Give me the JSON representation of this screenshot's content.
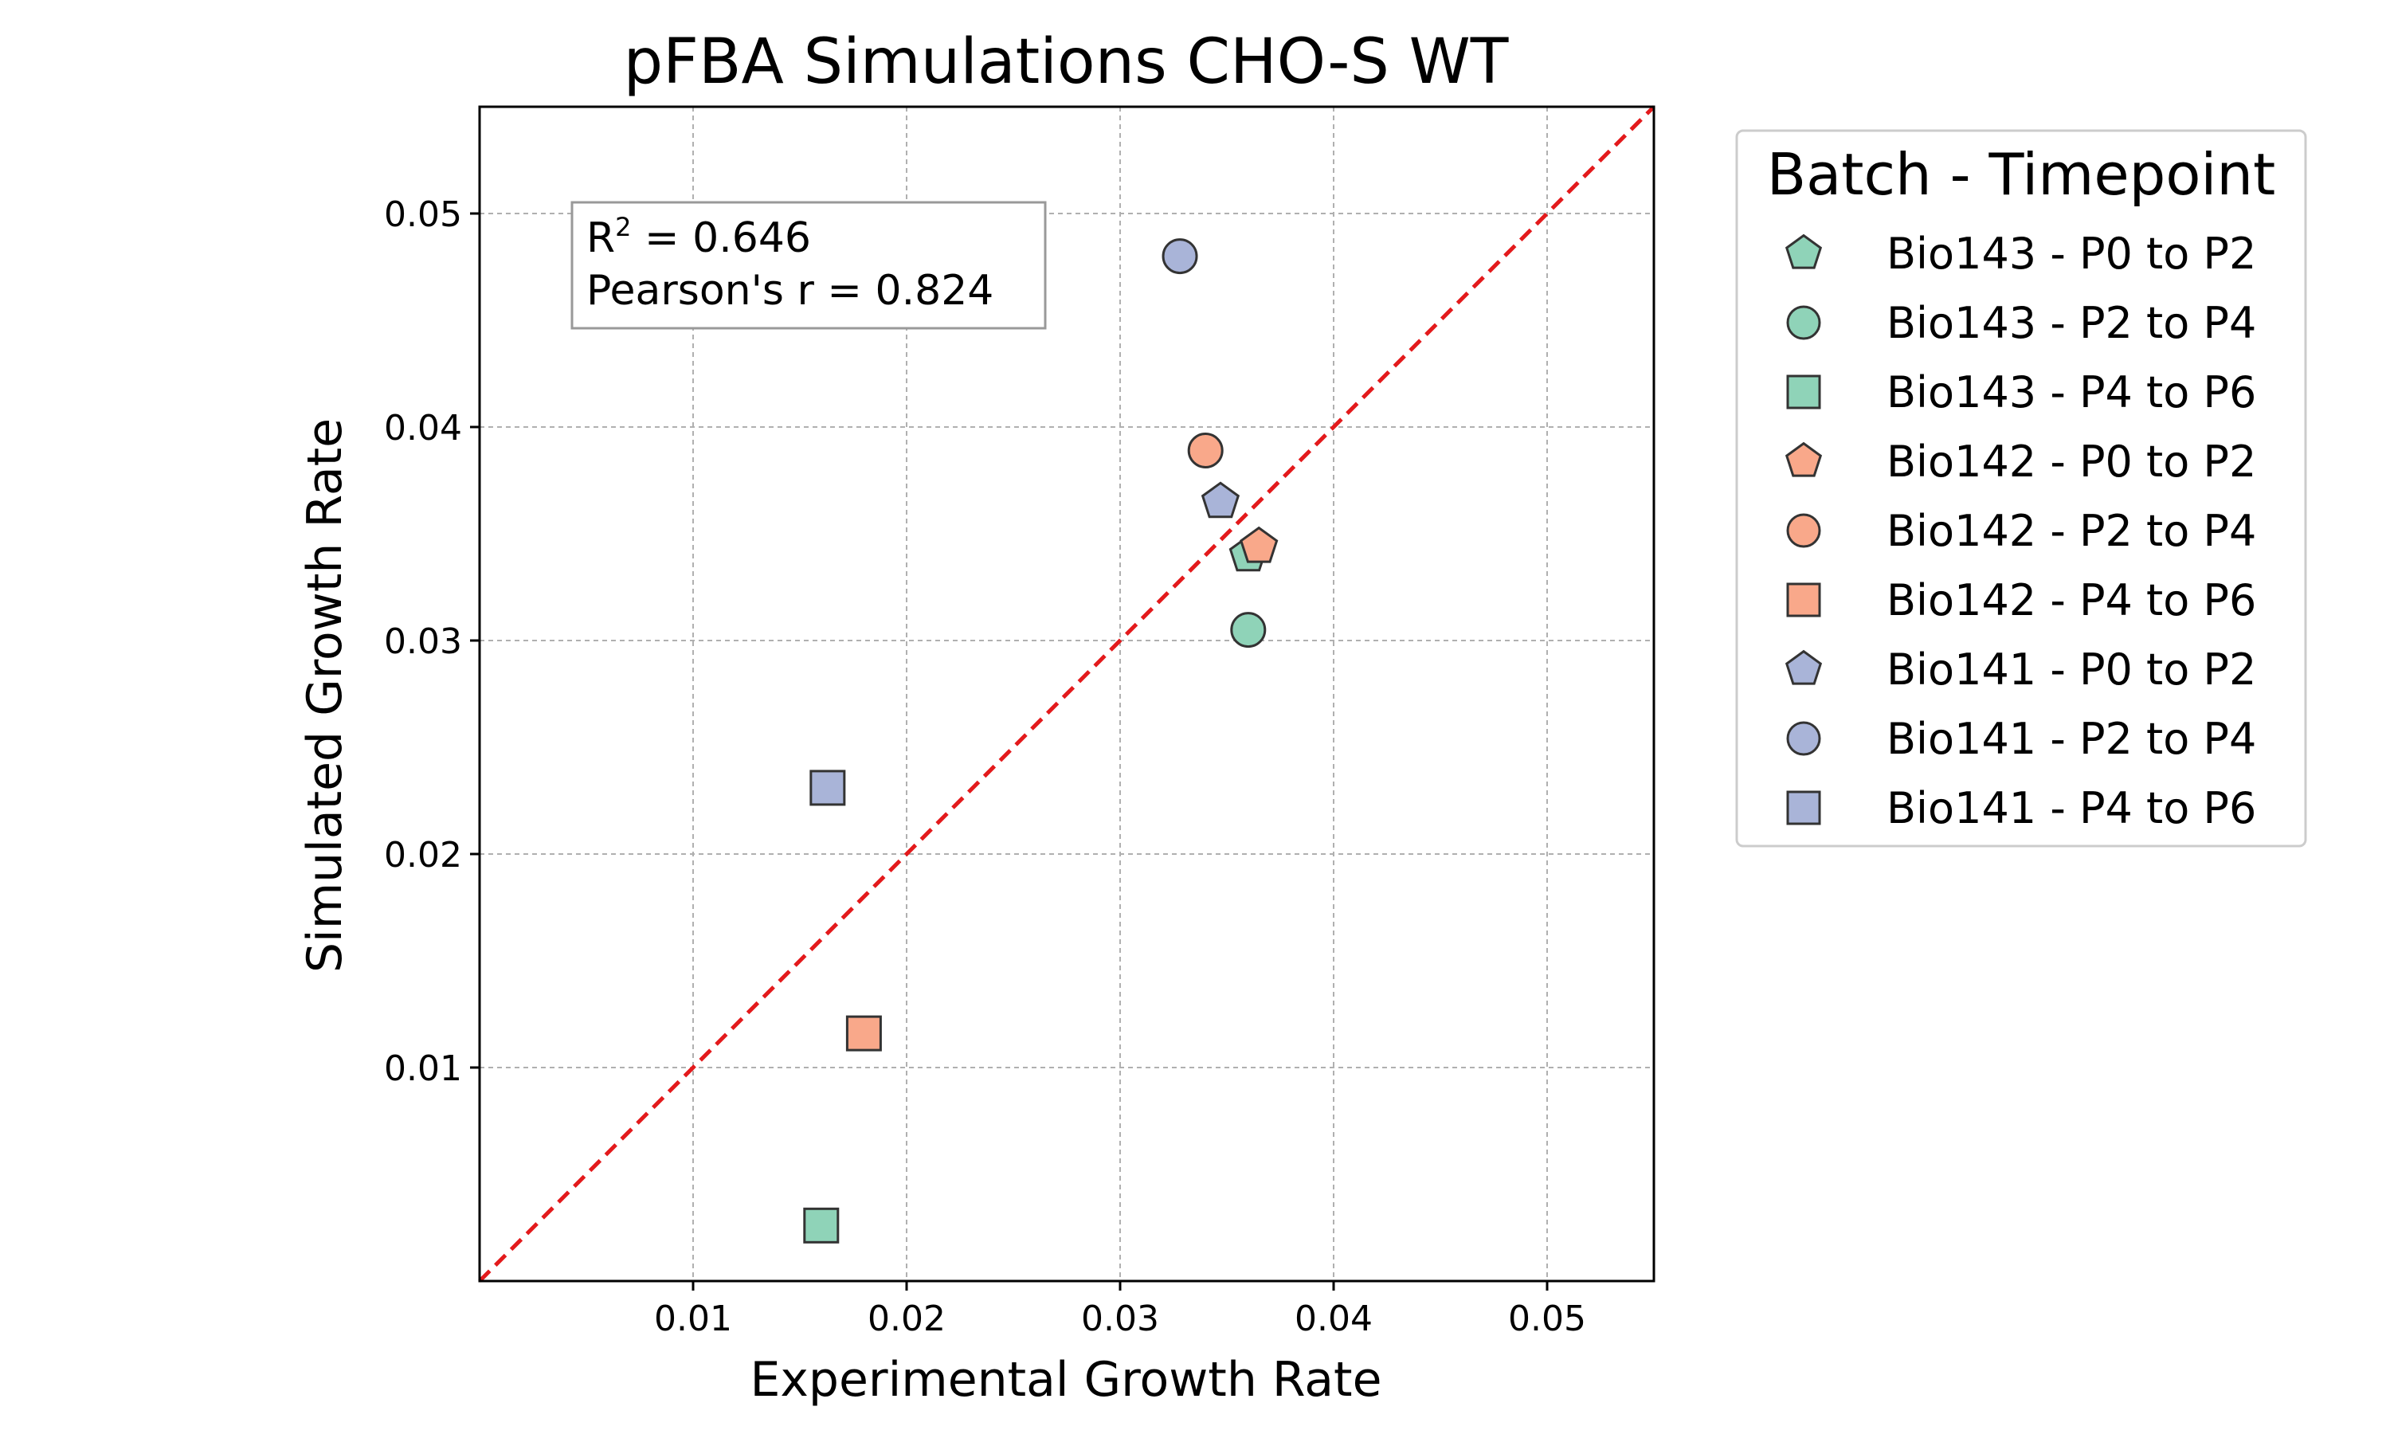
{
  "chart_data": {
    "type": "scatter",
    "title": "pFBA Simulations CHO-S WT",
    "xlabel": "Experimental Growth Rate",
    "ylabel": "Simulated Growth Rate",
    "xlim": [
      0.0,
      0.055
    ],
    "ylim": [
      0.0,
      0.055
    ],
    "xticks": [
      0.01,
      0.02,
      0.03,
      0.04,
      0.05
    ],
    "yticks": [
      0.01,
      0.02,
      0.03,
      0.04,
      0.05
    ],
    "xtick_labels": [
      "0.01",
      "0.02",
      "0.03",
      "0.04",
      "0.05"
    ],
    "ytick_labels": [
      "0.01",
      "0.02",
      "0.03",
      "0.04",
      "0.05"
    ],
    "grid": true,
    "reference_line": {
      "type": "identity",
      "style": "dashed",
      "color": "#e31a1c"
    },
    "stats": {
      "r2_prefix": "R",
      "r2_sup": "2",
      "r2_value": " = 0.646",
      "pearson": "Pearson's r = 0.824"
    },
    "legend": {
      "title": "Batch - Timepoint",
      "placement": "outside-right-top"
    },
    "colors": {
      "Bio143": "#8fd3b8",
      "Bio142": "#f9a88a",
      "Bio141": "#a9b4d8",
      "edge": "#333333"
    },
    "series": [
      {
        "name": "Bio143 - P0 to P2",
        "batch": "Bio143",
        "marker": "pentagon",
        "x": [
          0.036
        ],
        "y": [
          0.034
        ]
      },
      {
        "name": "Bio143 - P2 to P4",
        "batch": "Bio143",
        "marker": "circle",
        "x": [
          0.036
        ],
        "y": [
          0.0305
        ]
      },
      {
        "name": "Bio143 - P4 to P6",
        "batch": "Bio143",
        "marker": "square",
        "x": [
          0.016
        ],
        "y": [
          0.0026
        ]
      },
      {
        "name": "Bio142 - P0 to P2",
        "batch": "Bio142",
        "marker": "pentagon",
        "x": [
          0.0365
        ],
        "y": [
          0.0344
        ]
      },
      {
        "name": "Bio142 - P2 to P4",
        "batch": "Bio142",
        "marker": "circle",
        "x": [
          0.034
        ],
        "y": [
          0.0389
        ]
      },
      {
        "name": "Bio142 - P4 to P6",
        "batch": "Bio142",
        "marker": "square",
        "x": [
          0.018
        ],
        "y": [
          0.0116
        ]
      },
      {
        "name": "Bio141 - P0 to P2",
        "batch": "Bio141",
        "marker": "pentagon",
        "x": [
          0.0347
        ],
        "y": [
          0.0365
        ]
      },
      {
        "name": "Bio141 - P2 to P4",
        "batch": "Bio141",
        "marker": "circle",
        "x": [
          0.0328
        ],
        "y": [
          0.048
        ]
      },
      {
        "name": "Bio141 - P4 to P6",
        "batch": "Bio141",
        "marker": "square",
        "x": [
          0.0163
        ],
        "y": [
          0.0231
        ]
      }
    ]
  }
}
